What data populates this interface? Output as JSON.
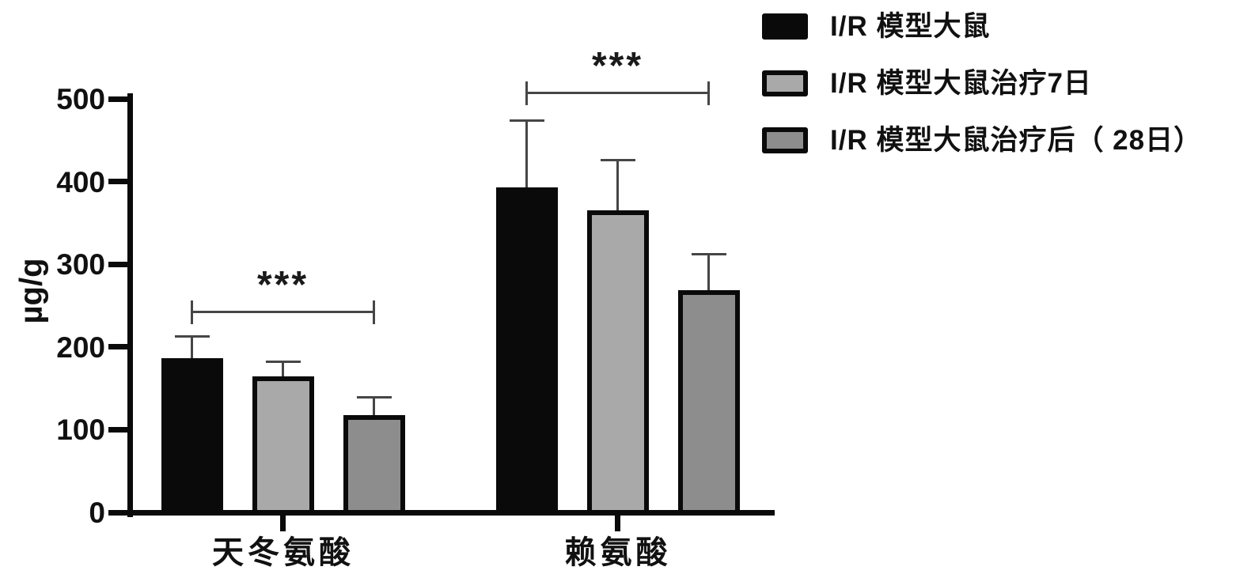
{
  "figure": {
    "background": "#ffffff",
    "axis_color": "#0a0a0a",
    "error_bar_color": "#464646",
    "bracket_color": "#464646"
  },
  "chart_data": {
    "type": "bar",
    "title": "",
    "xlabel": "",
    "ylabel": "µg/g",
    "ylim": [
      0,
      500
    ],
    "yticks": [
      0,
      100,
      200,
      300,
      400,
      500
    ],
    "grid": false,
    "legend_position": "top-right",
    "categories": [
      "天冬氨酸",
      "赖氨酸"
    ],
    "series": [
      {
        "name": "I/R 模型大鼠",
        "fill": "#0a0a0a",
        "border": "#0a0a0a",
        "values": [
          186,
          393
        ],
        "errors": [
          27,
          81
        ]
      },
      {
        "name": "I/R 模型大鼠治疗7日",
        "fill": "#a9a9a9",
        "border": "#0a0a0a",
        "values": [
          164,
          365
        ],
        "errors": [
          18,
          61
        ]
      },
      {
        "name": "I/R 模型大鼠治疗后（ 28日）",
        "fill": "#8d8d8d",
        "border": "#0a0a0a",
        "values": [
          118,
          269
        ],
        "errors": [
          21,
          43
        ]
      }
    ],
    "annotations": [
      {
        "category_index": 0,
        "from_series": 0,
        "to_series": 2,
        "label": "***",
        "height_value": 242
      },
      {
        "category_index": 1,
        "from_series": 0,
        "to_series": 2,
        "label": "***",
        "height_value": 507
      }
    ]
  }
}
